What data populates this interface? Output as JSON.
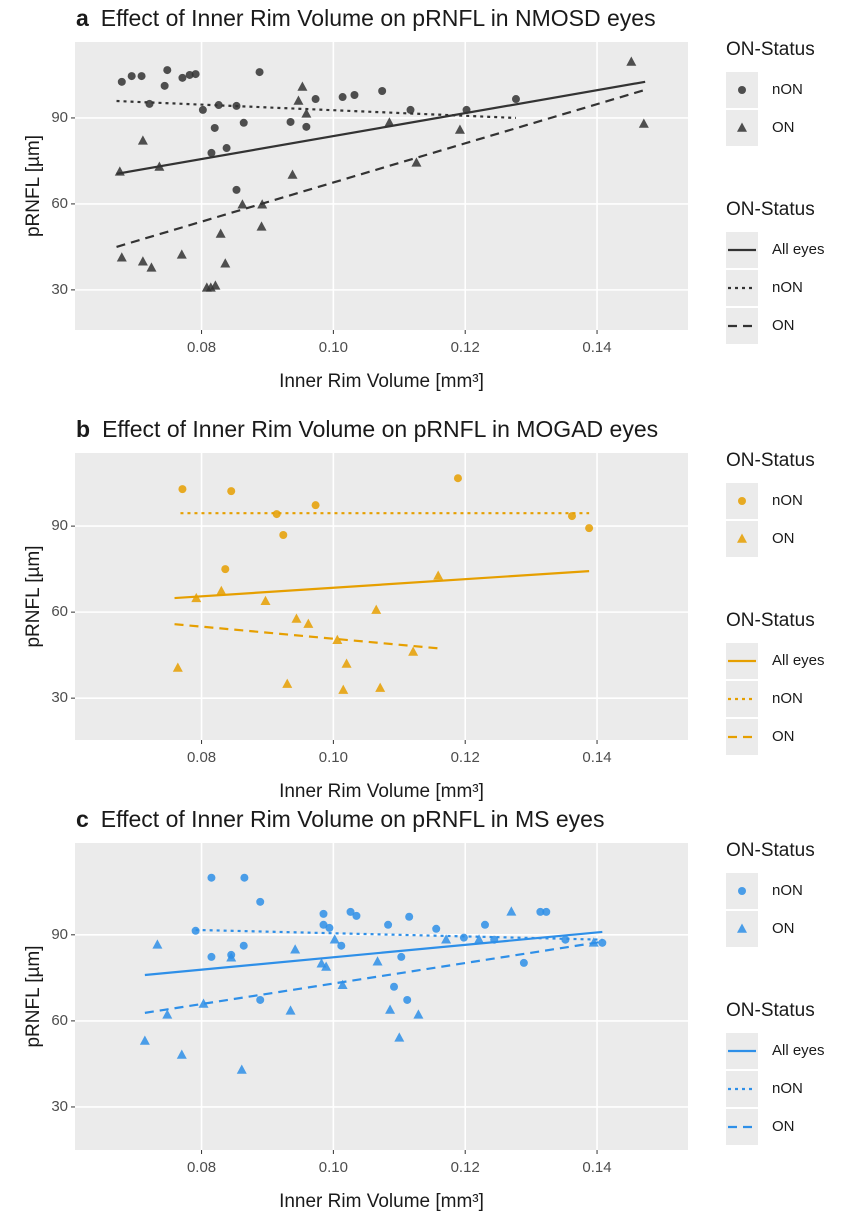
{
  "chart_data": [
    {
      "type": "scatter",
      "tag": "a",
      "title": "Effect of Inner Rim Volume on pRNFL in NMOSD eyes",
      "x_label": "Inner Rim Volume [mm³]",
      "y_label": "pRNFL [µm]",
      "xlim": [
        0.0608,
        0.1538
      ],
      "ylim": [
        16,
        116.5
      ],
      "xticks": [
        0.08,
        {
          "value": 0.1,
          "label": "0.10"
        },
        0.12,
        0.14
      ],
      "yticks": [
        30,
        60,
        90
      ],
      "grid": true,
      "color": "#333333",
      "legend_position": "right",
      "shape_legend_title": "ON-Status",
      "line_legend_title": "ON-Status",
      "series": [
        {
          "name": "nON",
          "shape": "circle",
          "x": [
            0.0679,
            0.0694,
            0.0709,
            0.0721,
            0.0744,
            0.0748,
            0.0771,
            0.0782,
            0.0791,
            0.0802,
            0.0815,
            0.082,
            0.0826,
            0.0838,
            0.0853,
            0.0853,
            0.0864,
            0.0888,
            0.0935,
            0.0959,
            0.0973,
            0.1014,
            0.1032,
            0.1074,
            0.1117,
            0.1202,
            0.1277
          ],
          "values": [
            102.6,
            104.6,
            104.6,
            94.9,
            101.2,
            106.7,
            104.0,
            105.0,
            105.3,
            92.8,
            77.8,
            86.5,
            94.5,
            79.5,
            94.2,
            64.9,
            88.3,
            106.0,
            88.6,
            86.9,
            96.6,
            97.3,
            98.0,
            99.4,
            92.8,
            92.8,
            96.6
          ]
        },
        {
          "name": "ON",
          "shape": "triangle",
          "x": [
            0.0676,
            0.0711,
            0.0679,
            0.0711,
            0.0724,
            0.0736,
            0.077,
            0.0808,
            0.0814,
            0.0821,
            0.0829,
            0.0836,
            0.0862,
            0.0891,
            0.0892,
            0.0938,
            0.0953,
            0.0947,
            0.0959,
            0.1085,
            0.1126,
            0.1192,
            0.1452,
            0.1471
          ],
          "values": [
            71.2,
            82.0,
            41.2,
            39.8,
            37.7,
            72.9,
            42.2,
            30.7,
            30.7,
            31.4,
            49.5,
            39.1,
            59.7,
            52.0,
            59.7,
            70.1,
            100.8,
            95.9,
            91.4,
            88.3,
            74.3,
            85.8,
            109.5,
            87.9
          ]
        }
      ],
      "lines": [
        {
          "name": "All eyes",
          "linetype": "solid",
          "x": [
            0.0671,
            0.1473
          ],
          "values": [
            70.5,
            102.6
          ]
        },
        {
          "name": "nON",
          "linetype": "dotted",
          "x": [
            0.0671,
            0.1277
          ],
          "values": [
            95.9,
            90.0
          ]
        },
        {
          "name": "ON",
          "linetype": "dashed",
          "x": [
            0.0671,
            0.1473
          ],
          "values": [
            45.0,
            99.8
          ]
        }
      ]
    },
    {
      "type": "scatter",
      "tag": "b",
      "title": "Effect of Inner Rim Volume on pRNFL in MOGAD eyes",
      "x_label": "Inner Rim Volume [mm³]",
      "y_label": "pRNFL [µm]",
      "xlim": [
        0.0608,
        0.1538
      ],
      "ylim": [
        15.4,
        115.5
      ],
      "xticks": [
        0.08,
        {
          "value": 0.1,
          "label": "0.10"
        },
        0.12,
        0.14
      ],
      "yticks": [
        30,
        60,
        90
      ],
      "grid": true,
      "color": "#E69F00",
      "legend_position": "right",
      "shape_legend_title": "ON-Status",
      "line_legend_title": "ON-Status",
      "series": [
        {
          "name": "nON",
          "shape": "circle",
          "x": [
            0.0771,
            0.0845,
            0.0914,
            0.0924,
            0.0973,
            0.0836,
            0.1189,
            0.1362,
            0.1388
          ],
          "values": [
            102.9,
            102.2,
            94.2,
            86.9,
            97.3,
            75.0,
            106.7,
            93.5,
            89.3
          ]
        },
        {
          "name": "ON",
          "shape": "triangle",
          "x": [
            0.0764,
            0.0792,
            0.083,
            0.0897,
            0.0944,
            0.0962,
            0.1006,
            0.102,
            0.1015,
            0.093,
            0.1065,
            0.1071,
            0.1121,
            0.1159
          ],
          "values": [
            40.5,
            64.8,
            67.3,
            63.8,
            57.6,
            55.8,
            50.2,
            41.9,
            32.8,
            34.9,
            60.7,
            33.5,
            46.1,
            72.6
          ]
        }
      ],
      "lines": [
        {
          "name": "All eyes",
          "linetype": "solid",
          "x": [
            0.0759,
            0.1388
          ],
          "values": [
            64.9,
            74.3
          ]
        },
        {
          "name": "nON",
          "linetype": "dotted",
          "x": [
            0.0768,
            0.1388
          ],
          "values": [
            94.5,
            94.5
          ]
        },
        {
          "name": "ON",
          "linetype": "dashed",
          "x": [
            0.0759,
            0.1158
          ],
          "values": [
            55.8,
            47.4
          ]
        }
      ]
    },
    {
      "type": "scatter",
      "tag": "c",
      "title": "Effect of Inner Rim Volume on pRNFL in MS eyes",
      "x_label": "Inner Rim Volume [mm³]",
      "y_label": "pRNFL [µm]",
      "xlim": [
        0.0608,
        0.1538
      ],
      "ylim": [
        15,
        122
      ],
      "xticks": [
        0.08,
        {
          "value": 0.1,
          "label": "0.10"
        },
        0.12,
        0.14
      ],
      "yticks": [
        30,
        60,
        90
      ],
      "grid": true,
      "color": "#2E8FE8",
      "legend_position": "right",
      "shape_legend_title": "ON-Status",
      "line_legend_title": "ON-Status",
      "series": [
        {
          "name": "nON",
          "shape": "circle",
          "x": [
            0.0815,
            0.0865,
            0.0791,
            0.0815,
            0.0845,
            0.0864,
            0.0889,
            0.0889,
            0.0985,
            0.0985,
            0.0994,
            0.1012,
            0.1026,
            0.1035,
            0.1083,
            0.1115,
            0.1103,
            0.1156,
            0.1198,
            0.123,
            0.1244,
            0.1289,
            0.1314,
            0.1323,
            0.1352,
            0.1408,
            0.1092,
            0.1112
          ],
          "values": [
            109.9,
            109.9,
            91.4,
            82.3,
            83.0,
            86.2,
            101.5,
            67.3,
            97.3,
            93.5,
            92.4,
            86.2,
            98.0,
            96.6,
            93.5,
            96.3,
            82.3,
            92.1,
            89.0,
            93.5,
            88.3,
            80.2,
            98.0,
            98.0,
            88.3,
            87.2,
            71.9,
            67.3
          ]
        },
        {
          "name": "ON",
          "shape": "triangle",
          "x": [
            0.0714,
            0.0733,
            0.0748,
            0.077,
            0.0803,
            0.0845,
            0.0861,
            0.0935,
            0.0942,
            0.0982,
            0.0989,
            0.1002,
            0.1014,
            0.1067,
            0.1086,
            0.11,
            0.1129,
            0.1171,
            0.1221,
            0.127,
            0.1395
          ],
          "values": [
            53.0,
            86.5,
            62.1,
            48.1,
            65.9,
            82.0,
            42.9,
            63.5,
            84.8,
            79.9,
            78.8,
            88.3,
            72.4,
            80.6,
            63.8,
            54.1,
            62.1,
            88.3,
            88.3,
            98.0,
            87.2
          ]
        }
      ],
      "lines": [
        {
          "name": "All eyes",
          "linetype": "solid",
          "x": [
            0.0714,
            0.1408
          ],
          "values": [
            76.0,
            91.0
          ]
        },
        {
          "name": "nON",
          "linetype": "dotted",
          "x": [
            0.0791,
            0.1408
          ],
          "values": [
            91.7,
            88.3
          ]
        },
        {
          "name": "ON",
          "linetype": "dashed",
          "x": [
            0.0714,
            0.1408
          ],
          "values": [
            62.8,
            87.6
          ]
        }
      ]
    }
  ]
}
